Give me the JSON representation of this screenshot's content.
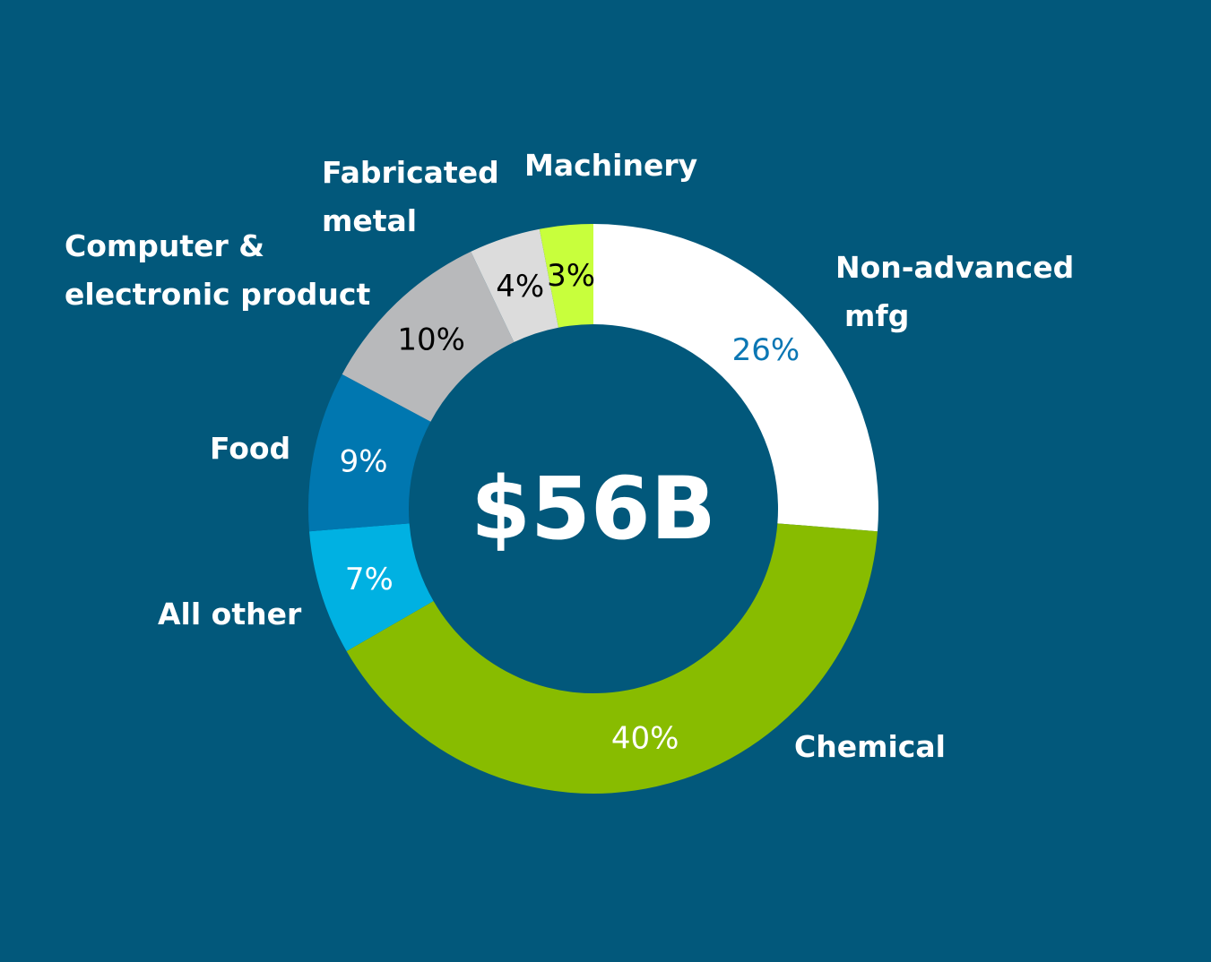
{
  "chart_data": {
    "type": "pie",
    "variant": "donut",
    "center_label": "$56B",
    "start": "top",
    "direction": "clockwise",
    "slices": [
      {
        "name": "Non-advanced mfg",
        "value": 26,
        "label": "26%",
        "color": "#ffffff",
        "label_color": "#0b77b4"
      },
      {
        "name": "Chemical",
        "value": 40,
        "label": "40%",
        "color": "#88bc00",
        "label_color": "#ffffff"
      },
      {
        "name": "All other",
        "value": 7,
        "label": "7%",
        "color": "#00b1e2",
        "label_color": "#ffffff"
      },
      {
        "name": "Food",
        "value": 9,
        "label": "9%",
        "color": "#0077b0",
        "label_color": "#ffffff"
      },
      {
        "name": "Computer & electronic product",
        "value": 10,
        "label": "10%",
        "color": "#b8b9bb",
        "label_color": "#000000"
      },
      {
        "name": "Fabricated metal",
        "value": 4,
        "label": "4%",
        "color": "#dcdcdc",
        "label_color": "#000000"
      },
      {
        "name": "Machinery",
        "value": 3,
        "label": "3%",
        "color": "#c8ff3c",
        "label_color": "#000000"
      }
    ]
  },
  "labels": {
    "nonadv_1": "Non-advanced",
    "nonadv_2": "mfg",
    "chemical": "Chemical",
    "allother": "All other",
    "food": "Food",
    "computer_1": "Computer &",
    "computer_2": "electronic product",
    "fab_1": "Fabricated",
    "fab_2": "metal",
    "machinery": "Machinery"
  }
}
